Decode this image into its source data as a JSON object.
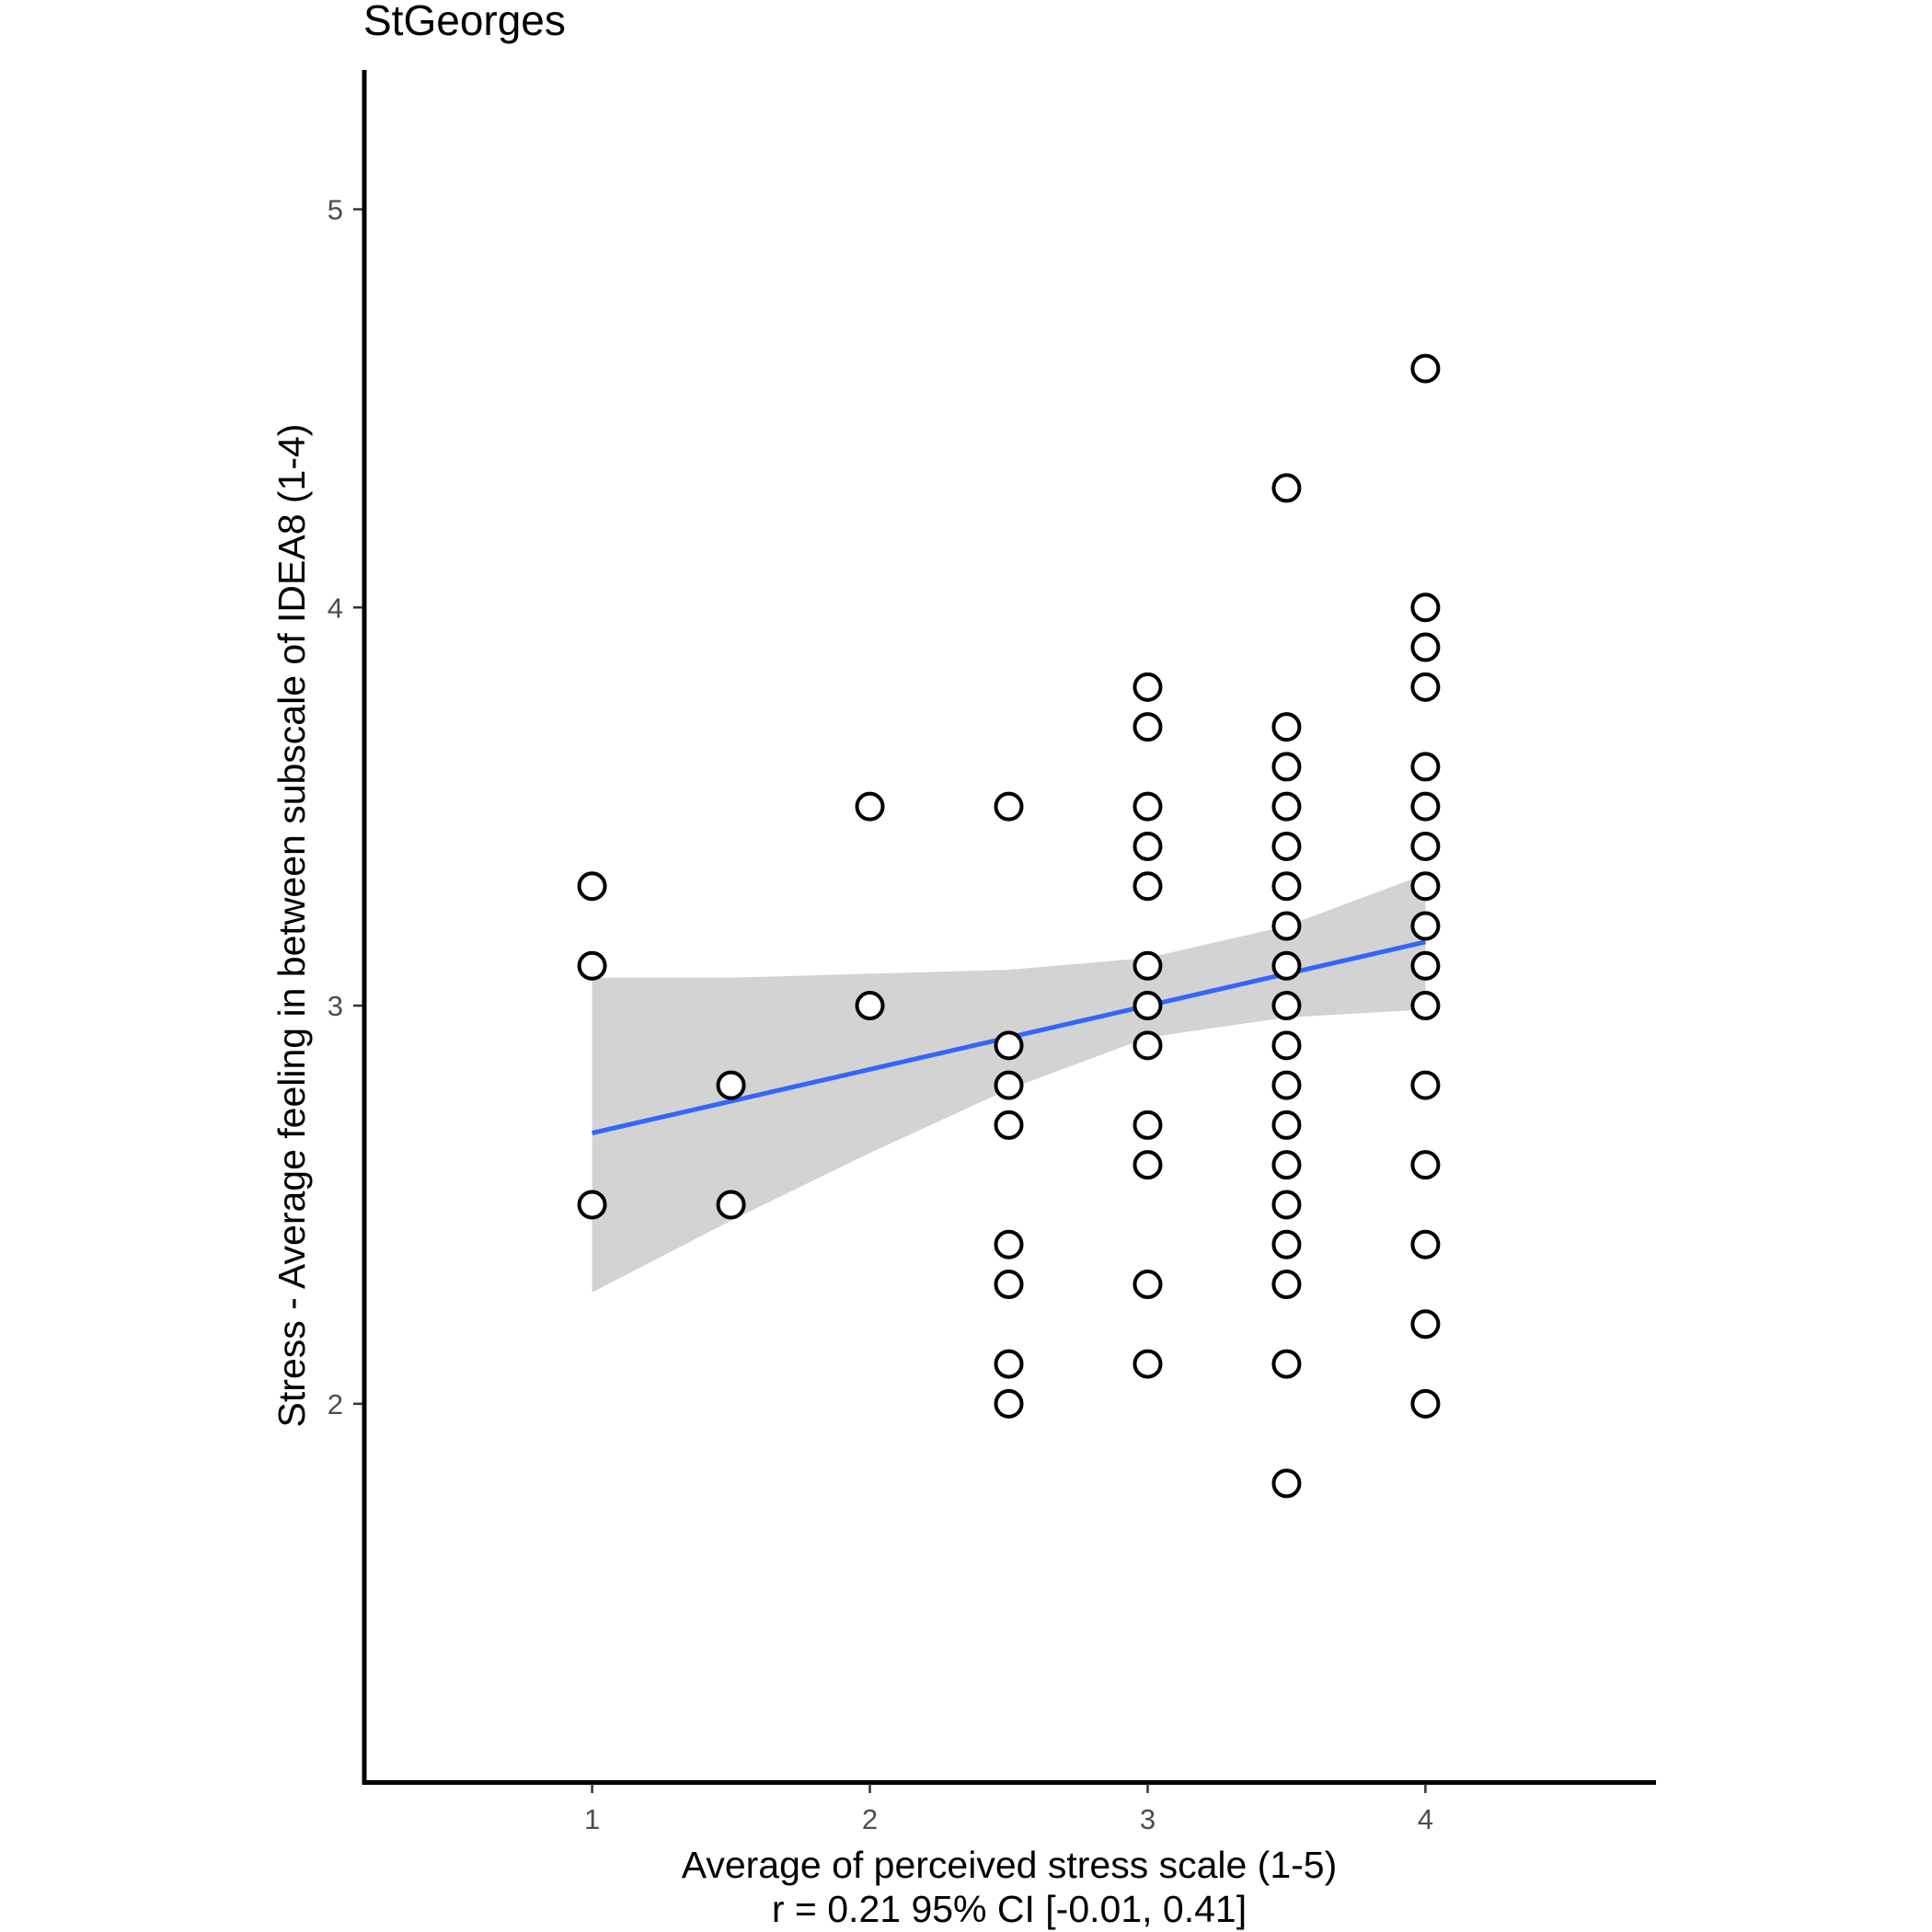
{
  "chart_data": {
    "type": "scatter",
    "title": "StGeorges",
    "xlabel": "Average of perceived stress scale (1-5)",
    "xlabel_line2": "r = 0.21 95% CI [-0.01, 0.41]",
    "ylabel": "Stress - Average feeling in between subscale of IDEA8 (1-4)",
    "xlim": [
      0.18,
      4.83
    ],
    "ylim": [
      1.05,
      5.35
    ],
    "x_ticks": [
      1,
      2,
      3,
      4
    ],
    "y_ticks": [
      2,
      3,
      4,
      5
    ],
    "grid": false,
    "points": [
      {
        "x": 1,
        "y": 3.3
      },
      {
        "x": 1,
        "y": 3.1
      },
      {
        "x": 1,
        "y": 2.5
      },
      {
        "x": 1.5,
        "y": 2.8
      },
      {
        "x": 1.5,
        "y": 2.5
      },
      {
        "x": 2,
        "y": 3.5
      },
      {
        "x": 2,
        "y": 3.0
      },
      {
        "x": 2.5,
        "y": 3.5
      },
      {
        "x": 2.5,
        "y": 2.9
      },
      {
        "x": 2.5,
        "y": 2.8
      },
      {
        "x": 2.5,
        "y": 2.7
      },
      {
        "x": 2.5,
        "y": 2.4
      },
      {
        "x": 2.5,
        "y": 2.3
      },
      {
        "x": 2.5,
        "y": 2.1
      },
      {
        "x": 2.5,
        "y": 2.0
      },
      {
        "x": 3,
        "y": 3.8
      },
      {
        "x": 3,
        "y": 3.7
      },
      {
        "x": 3,
        "y": 3.5
      },
      {
        "x": 3,
        "y": 3.4
      },
      {
        "x": 3,
        "y": 3.3
      },
      {
        "x": 3,
        "y": 3.1
      },
      {
        "x": 3,
        "y": 3.0
      },
      {
        "x": 3,
        "y": 2.9
      },
      {
        "x": 3,
        "y": 2.7
      },
      {
        "x": 3,
        "y": 2.6
      },
      {
        "x": 3,
        "y": 2.3
      },
      {
        "x": 3,
        "y": 2.1
      },
      {
        "x": 3.5,
        "y": 4.3
      },
      {
        "x": 3.5,
        "y": 3.7
      },
      {
        "x": 3.5,
        "y": 3.6
      },
      {
        "x": 3.5,
        "y": 3.5
      },
      {
        "x": 3.5,
        "y": 3.4
      },
      {
        "x": 3.5,
        "y": 3.3
      },
      {
        "x": 3.5,
        "y": 3.2
      },
      {
        "x": 3.5,
        "y": 3.1
      },
      {
        "x": 3.5,
        "y": 3.0
      },
      {
        "x": 3.5,
        "y": 2.9
      },
      {
        "x": 3.5,
        "y": 2.8
      },
      {
        "x": 3.5,
        "y": 2.7
      },
      {
        "x": 3.5,
        "y": 2.6
      },
      {
        "x": 3.5,
        "y": 2.5
      },
      {
        "x": 3.5,
        "y": 2.4
      },
      {
        "x": 3.5,
        "y": 2.3
      },
      {
        "x": 3.5,
        "y": 2.1
      },
      {
        "x": 3.5,
        "y": 1.8
      },
      {
        "x": 4,
        "y": 4.6
      },
      {
        "x": 4,
        "y": 4.0
      },
      {
        "x": 4,
        "y": 3.9
      },
      {
        "x": 4,
        "y": 3.8
      },
      {
        "x": 4,
        "y": 3.6
      },
      {
        "x": 4,
        "y": 3.5
      },
      {
        "x": 4,
        "y": 3.4
      },
      {
        "x": 4,
        "y": 3.3
      },
      {
        "x": 4,
        "y": 3.2
      },
      {
        "x": 4,
        "y": 3.1
      },
      {
        "x": 4,
        "y": 3.0
      },
      {
        "x": 4,
        "y": 2.8
      },
      {
        "x": 4,
        "y": 2.6
      },
      {
        "x": 4,
        "y": 2.4
      },
      {
        "x": 4,
        "y": 2.2
      },
      {
        "x": 4,
        "y": 2.0
      }
    ],
    "fit_line": {
      "x": [
        1,
        4
      ],
      "y": [
        2.68,
        3.16
      ],
      "color": "#3366ff"
    },
    "confidence_band": {
      "x": [
        1,
        1.5,
        2,
        2.5,
        3,
        3.5,
        4
      ],
      "lower": [
        2.28,
        2.46,
        2.63,
        2.79,
        2.92,
        2.97,
        2.99
      ],
      "upper": [
        3.07,
        3.07,
        3.08,
        3.09,
        3.12,
        3.2,
        3.33
      ],
      "color": "#d3d3d3"
    },
    "point_style": {
      "fill": "#ffffff",
      "stroke": "#000000"
    }
  }
}
